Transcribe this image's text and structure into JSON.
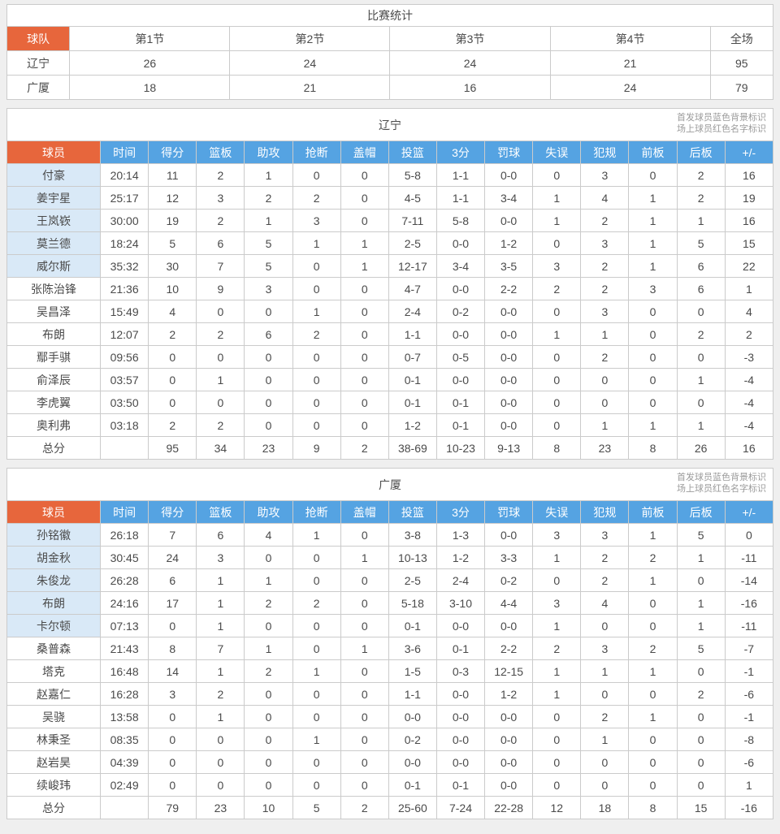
{
  "colors": {
    "orange": "#e7663c",
    "blue": "#55a3e2",
    "starter_bg": "#d9e9f7",
    "border": "#cbcbcb",
    "text": "#4a4a4a",
    "legend_text": "#9b9b9b",
    "page_bg": "#efefef"
  },
  "legend": {
    "line1": "首发球员蓝色背景标识",
    "line2": "场上球员红色名字标识"
  },
  "quarter_table": {
    "title": "比赛统计",
    "headers": [
      "球队",
      "第1节",
      "第2节",
      "第3节",
      "第4节",
      "全场"
    ],
    "rows": [
      {
        "name": "辽宁",
        "cells": [
          "26",
          "24",
          "24",
          "21",
          "95"
        ]
      },
      {
        "name": "广厦",
        "cells": [
          "18",
          "21",
          "16",
          "24",
          "79"
        ]
      }
    ]
  },
  "teams": [
    {
      "title": "辽宁",
      "headers": [
        "球员",
        "时间",
        "得分",
        "篮板",
        "助攻",
        "抢断",
        "盖帽",
        "投篮",
        "3分",
        "罚球",
        "失误",
        "犯规",
        "前板",
        "后板",
        "+/-"
      ],
      "rows": [
        {
          "name": "付豪",
          "starter": true,
          "cells": [
            "20:14",
            "11",
            "2",
            "1",
            "0",
            "0",
            "5-8",
            "1-1",
            "0-0",
            "0",
            "3",
            "0",
            "2",
            "16"
          ]
        },
        {
          "name": "姜宇星",
          "starter": true,
          "cells": [
            "25:17",
            "12",
            "3",
            "2",
            "2",
            "0",
            "4-5",
            "1-1",
            "3-4",
            "1",
            "4",
            "1",
            "2",
            "19"
          ]
        },
        {
          "name": "王岚嵚",
          "starter": true,
          "cells": [
            "30:00",
            "19",
            "2",
            "1",
            "3",
            "0",
            "7-11",
            "5-8",
            "0-0",
            "1",
            "2",
            "1",
            "1",
            "16"
          ]
        },
        {
          "name": "莫兰德",
          "starter": true,
          "cells": [
            "18:24",
            "5",
            "6",
            "5",
            "1",
            "1",
            "2-5",
            "0-0",
            "1-2",
            "0",
            "3",
            "1",
            "5",
            "15"
          ]
        },
        {
          "name": "威尔斯",
          "starter": true,
          "cells": [
            "35:32",
            "30",
            "7",
            "5",
            "0",
            "1",
            "12-17",
            "3-4",
            "3-5",
            "3",
            "2",
            "1",
            "6",
            "22"
          ]
        },
        {
          "name": "张陈治锋",
          "starter": false,
          "cells": [
            "21:36",
            "10",
            "9",
            "3",
            "0",
            "0",
            "4-7",
            "0-0",
            "2-2",
            "2",
            "2",
            "3",
            "6",
            "1"
          ]
        },
        {
          "name": "吴昌泽",
          "starter": false,
          "cells": [
            "15:49",
            "4",
            "0",
            "0",
            "1",
            "0",
            "2-4",
            "0-2",
            "0-0",
            "0",
            "3",
            "0",
            "0",
            "4"
          ]
        },
        {
          "name": "布朗",
          "starter": false,
          "cells": [
            "12:07",
            "2",
            "2",
            "6",
            "2",
            "0",
            "1-1",
            "0-0",
            "0-0",
            "1",
            "1",
            "0",
            "2",
            "2"
          ]
        },
        {
          "name": "鄢手骐",
          "starter": false,
          "cells": [
            "09:56",
            "0",
            "0",
            "0",
            "0",
            "0",
            "0-7",
            "0-5",
            "0-0",
            "0",
            "2",
            "0",
            "0",
            "-3"
          ]
        },
        {
          "name": "俞泽辰",
          "starter": false,
          "cells": [
            "03:57",
            "0",
            "1",
            "0",
            "0",
            "0",
            "0-1",
            "0-0",
            "0-0",
            "0",
            "0",
            "0",
            "1",
            "-4"
          ]
        },
        {
          "name": "李虎翼",
          "starter": false,
          "cells": [
            "03:50",
            "0",
            "0",
            "0",
            "0",
            "0",
            "0-1",
            "0-1",
            "0-0",
            "0",
            "0",
            "0",
            "0",
            "-4"
          ]
        },
        {
          "name": "奥利弗",
          "starter": false,
          "cells": [
            "03:18",
            "2",
            "2",
            "0",
            "0",
            "0",
            "1-2",
            "0-1",
            "0-0",
            "0",
            "1",
            "1",
            "1",
            "-4"
          ]
        },
        {
          "name": "总分",
          "starter": false,
          "total": true,
          "cells": [
            "",
            "95",
            "34",
            "23",
            "9",
            "2",
            "38-69",
            "10-23",
            "9-13",
            "8",
            "23",
            "8",
            "26",
            "16"
          ]
        }
      ]
    },
    {
      "title": "广厦",
      "headers": [
        "球员",
        "时间",
        "得分",
        "篮板",
        "助攻",
        "抢断",
        "盖帽",
        "投篮",
        "3分",
        "罚球",
        "失误",
        "犯规",
        "前板",
        "后板",
        "+/-"
      ],
      "rows": [
        {
          "name": "孙铭徽",
          "starter": true,
          "cells": [
            "26:18",
            "7",
            "6",
            "4",
            "1",
            "0",
            "3-8",
            "1-3",
            "0-0",
            "3",
            "3",
            "1",
            "5",
            "0"
          ]
        },
        {
          "name": "胡金秋",
          "starter": true,
          "cells": [
            "30:45",
            "24",
            "3",
            "0",
            "0",
            "1",
            "10-13",
            "1-2",
            "3-3",
            "1",
            "2",
            "2",
            "1",
            "-11"
          ]
        },
        {
          "name": "朱俊龙",
          "starter": true,
          "cells": [
            "26:28",
            "6",
            "1",
            "1",
            "0",
            "0",
            "2-5",
            "2-4",
            "0-2",
            "0",
            "2",
            "1",
            "0",
            "-14"
          ]
        },
        {
          "name": "布朗",
          "starter": true,
          "cells": [
            "24:16",
            "17",
            "1",
            "2",
            "2",
            "0",
            "5-18",
            "3-10",
            "4-4",
            "3",
            "4",
            "0",
            "1",
            "-16"
          ]
        },
        {
          "name": "卡尔顿",
          "starter": true,
          "cells": [
            "07:13",
            "0",
            "1",
            "0",
            "0",
            "0",
            "0-1",
            "0-0",
            "0-0",
            "1",
            "0",
            "0",
            "1",
            "-11"
          ]
        },
        {
          "name": "桑普森",
          "starter": false,
          "cells": [
            "21:43",
            "8",
            "7",
            "1",
            "0",
            "1",
            "3-6",
            "0-1",
            "2-2",
            "2",
            "3",
            "2",
            "5",
            "-7"
          ]
        },
        {
          "name": "塔克",
          "starter": false,
          "cells": [
            "16:48",
            "14",
            "1",
            "2",
            "1",
            "0",
            "1-5",
            "0-3",
            "12-15",
            "1",
            "1",
            "1",
            "0",
            "-1"
          ]
        },
        {
          "name": "赵嘉仁",
          "starter": false,
          "cells": [
            "16:28",
            "3",
            "2",
            "0",
            "0",
            "0",
            "1-1",
            "0-0",
            "1-2",
            "1",
            "0",
            "0",
            "2",
            "-6"
          ]
        },
        {
          "name": "吴骁",
          "starter": false,
          "cells": [
            "13:58",
            "0",
            "1",
            "0",
            "0",
            "0",
            "0-0",
            "0-0",
            "0-0",
            "0",
            "2",
            "1",
            "0",
            "-1"
          ]
        },
        {
          "name": "林秉圣",
          "starter": false,
          "cells": [
            "08:35",
            "0",
            "0",
            "0",
            "1",
            "0",
            "0-2",
            "0-0",
            "0-0",
            "0",
            "1",
            "0",
            "0",
            "-8"
          ]
        },
        {
          "name": "赵岩昊",
          "starter": false,
          "cells": [
            "04:39",
            "0",
            "0",
            "0",
            "0",
            "0",
            "0-0",
            "0-0",
            "0-0",
            "0",
            "0",
            "0",
            "0",
            "-6"
          ]
        },
        {
          "name": "续峻玮",
          "starter": false,
          "cells": [
            "02:49",
            "0",
            "0",
            "0",
            "0",
            "0",
            "0-1",
            "0-1",
            "0-0",
            "0",
            "0",
            "0",
            "0",
            "1"
          ]
        },
        {
          "name": "总分",
          "starter": false,
          "total": true,
          "cells": [
            "",
            "79",
            "23",
            "10",
            "5",
            "2",
            "25-60",
            "7-24",
            "22-28",
            "12",
            "18",
            "8",
            "15",
            "-16"
          ]
        }
      ]
    }
  ]
}
